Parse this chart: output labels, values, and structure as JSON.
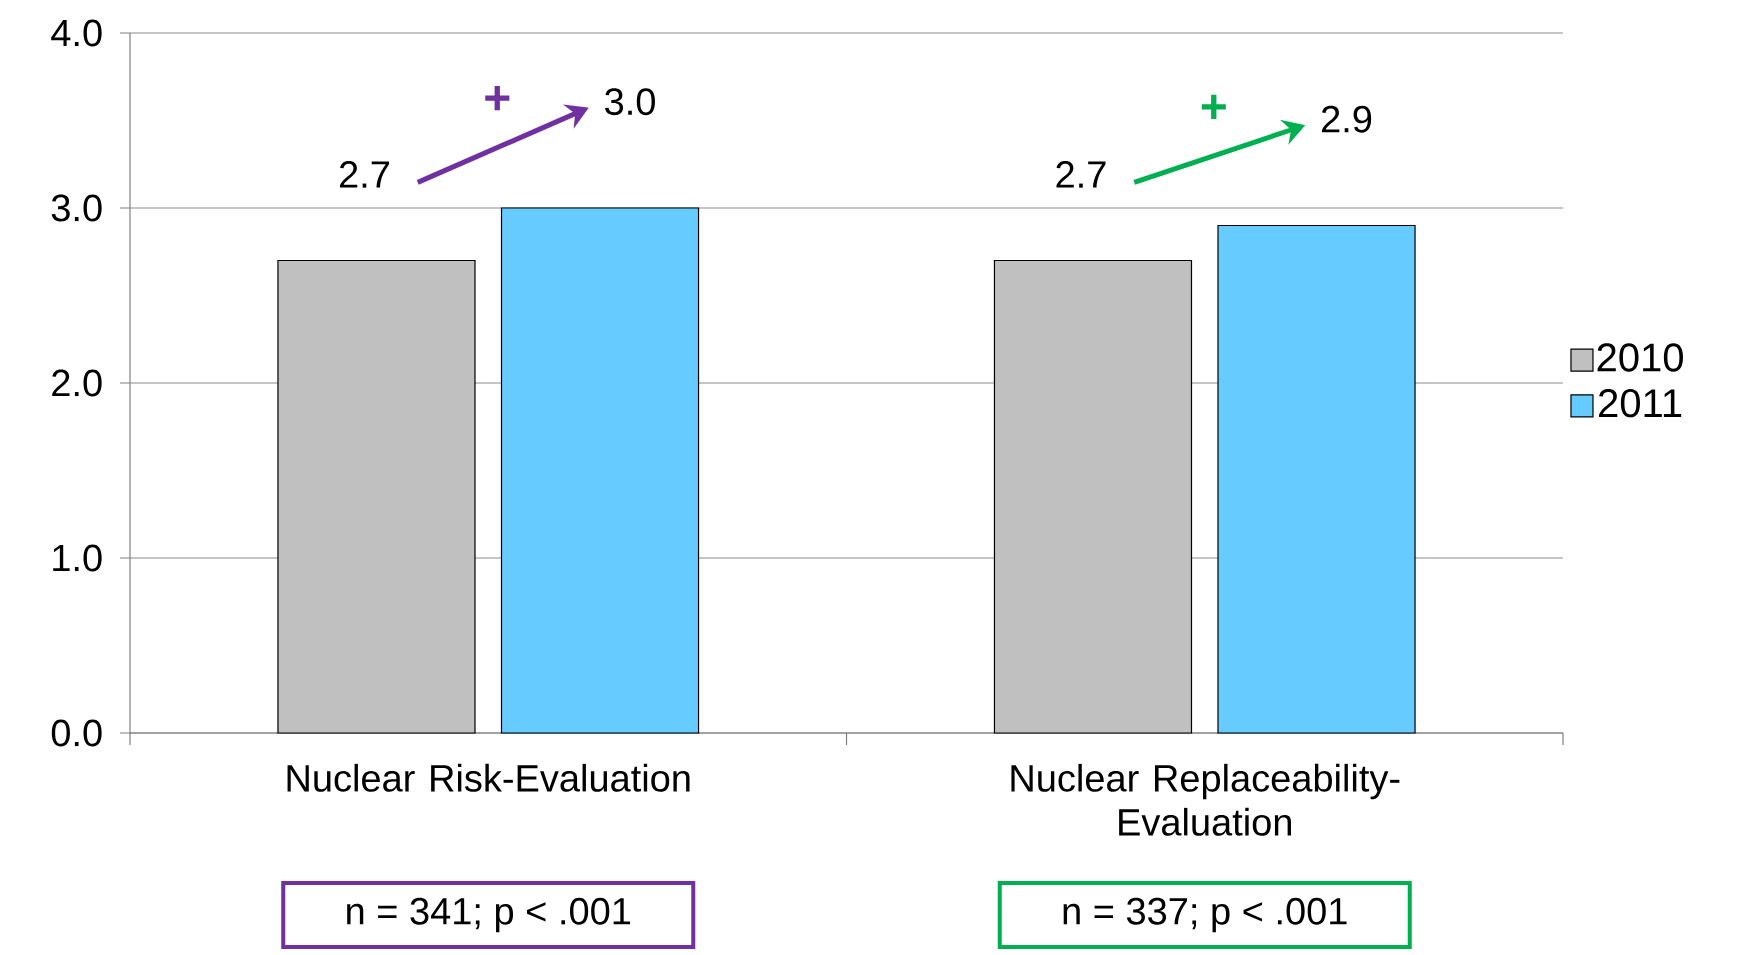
{
  "chart_data": {
    "type": "bar",
    "categories": [
      "Nuclear Risk-Evaluation",
      "Nuclear Replaceability-Evaluation"
    ],
    "series": [
      {
        "name": "2010",
        "color": "#c0c0c0",
        "values": [
          2.7,
          2.7
        ],
        "value_labels": [
          "2.7",
          "2.7"
        ]
      },
      {
        "name": "2011",
        "color": "#66ccff",
        "values": [
          3.0,
          2.9
        ],
        "value_labels": [
          "3.0",
          "2.9"
        ]
      }
    ],
    "ylim": [
      0,
      4
    ],
    "yticks": [
      {
        "value": 0,
        "label": "0.0"
      },
      {
        "value": 1,
        "label": "1.0"
      },
      {
        "value": 2,
        "label": "2.0"
      },
      {
        "value": 3,
        "label": "3.0"
      },
      {
        "value": 4,
        "label": "4.0"
      }
    ],
    "grid": "y",
    "legend": "right",
    "annotations": [
      "+",
      "+",
      "n = 341; p < .001",
      "n = 337; p < .001"
    ]
  }
}
